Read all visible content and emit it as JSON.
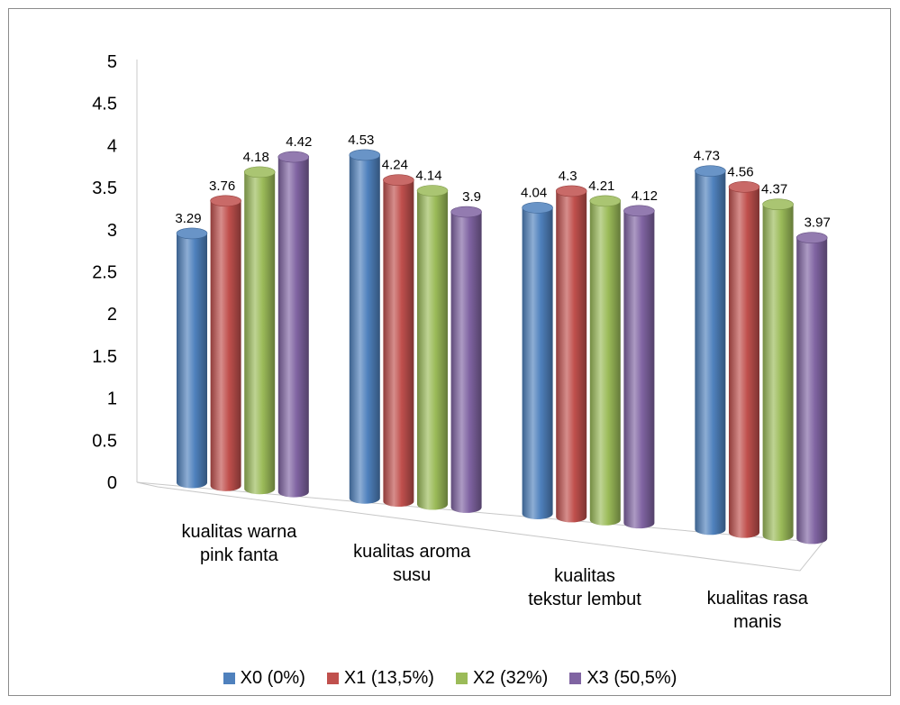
{
  "chart_data": {
    "type": "bar",
    "categories": [
      [
        "kualitas warna",
        "pink fanta"
      ],
      [
        "kualitas aroma",
        "susu"
      ],
      [
        "kualitas",
        "tekstur lembut"
      ],
      [
        "kualitas rasa",
        "manis"
      ]
    ],
    "series": [
      {
        "name": "X0 (0%)",
        "values": [
          3.29,
          4.53,
          4.04,
          4.73
        ],
        "labels": [
          "3.29",
          "4.53",
          "4.04",
          "4.73"
        ],
        "color": "#4f81bd"
      },
      {
        "name": "X1 (13,5%)",
        "values": [
          3.76,
          4.24,
          4.3,
          4.56
        ],
        "labels": [
          "3.76",
          "4.24",
          "4.3",
          "4.56"
        ],
        "color": "#c0504d"
      },
      {
        "name": "X2 (32%)",
        "values": [
          4.18,
          4.14,
          4.21,
          4.37
        ],
        "labels": [
          "4.18",
          "4.14",
          "4.21",
          "4.37"
        ],
        "color": "#9bbb59"
      },
      {
        "name": "X3 (50,5%)",
        "values": [
          4.42,
          3.9,
          4.12,
          3.97
        ],
        "labels": [
          "4.42",
          "3.9",
          "4.12",
          "3.97"
        ],
        "color": "#8064a2"
      }
    ],
    "y_ticks": [
      "0",
      "0.5",
      "1",
      "1.5",
      "2",
      "2.5",
      "3",
      "3.5",
      "4",
      "4.5",
      "5"
    ],
    "ylim": [
      0,
      5
    ],
    "title": "",
    "xlabel": "",
    "ylabel": "",
    "legend_position": "bottom",
    "grid": false,
    "style": "3d-cylinder"
  }
}
